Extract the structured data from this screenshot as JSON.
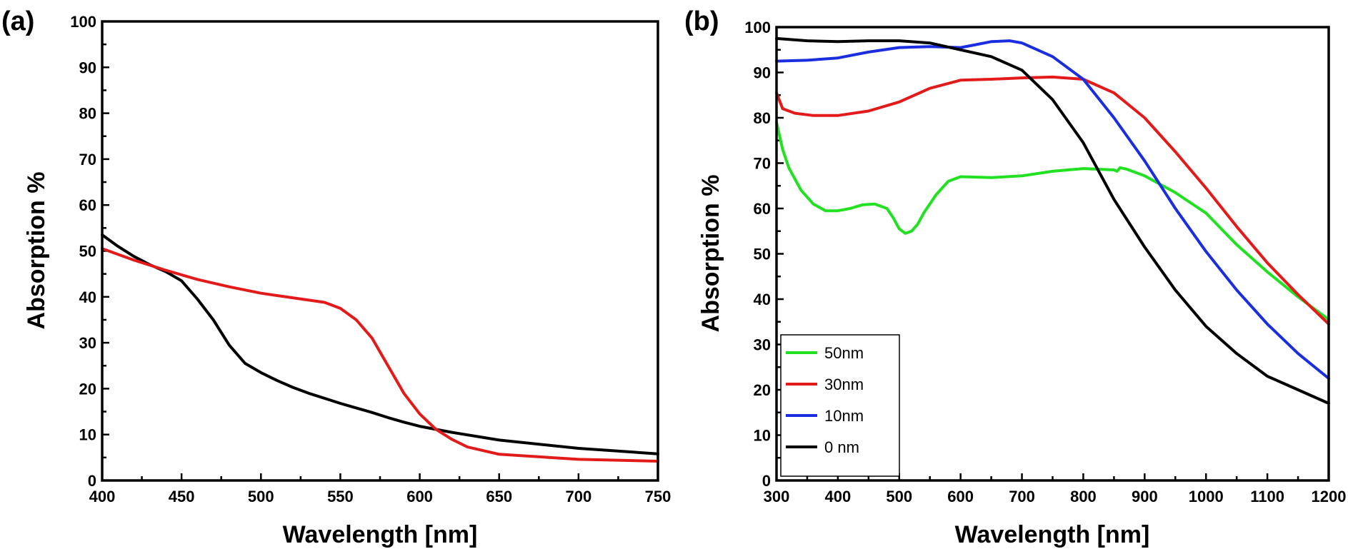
{
  "chart_data": [
    {
      "type": "line",
      "panel_label": "(a)",
      "title": "",
      "xlabel": "Wavelength [nm]",
      "ylabel": "Absorption %",
      "xlim": [
        400,
        750
      ],
      "ylim": [
        0,
        100
      ],
      "xticks": [
        400,
        450,
        500,
        550,
        600,
        650,
        700,
        750
      ],
      "yticks": [
        0,
        10,
        20,
        30,
        40,
        50,
        60,
        70,
        80,
        90,
        100
      ],
      "grid": false,
      "series": [
        {
          "name": "black",
          "color": "#000000",
          "x": [
            400,
            410,
            420,
            430,
            440,
            450,
            460,
            470,
            480,
            490,
            500,
            510,
            520,
            530,
            540,
            550,
            560,
            570,
            580,
            590,
            600,
            620,
            650,
            700,
            750
          ],
          "y": [
            53.5,
            51,
            48.8,
            47,
            45.5,
            43.5,
            39.5,
            35,
            29.5,
            25.5,
            23.5,
            21.8,
            20.3,
            19,
            17.9,
            16.8,
            15.8,
            14.8,
            13.7,
            12.7,
            11.8,
            10.5,
            8.8,
            7,
            5.8
          ]
        },
        {
          "name": "red",
          "color": "#e31a1a",
          "x": [
            400,
            420,
            440,
            460,
            480,
            500,
            520,
            540,
            550,
            560,
            570,
            580,
            590,
            600,
            610,
            620,
            630,
            650,
            700,
            750
          ],
          "y": [
            50.5,
            48,
            45.8,
            43.8,
            42.2,
            40.8,
            39.8,
            38.8,
            37.5,
            35,
            31,
            25,
            19,
            14.5,
            11.2,
            9,
            7.3,
            5.7,
            4.6,
            4.2
          ]
        }
      ]
    },
    {
      "type": "line",
      "panel_label": "(b)",
      "title": "",
      "xlabel": "Wavelength [nm]",
      "ylabel": "Absorption %",
      "xlim": [
        300,
        1200
      ],
      "ylim": [
        0,
        100
      ],
      "xticks": [
        300,
        400,
        500,
        600,
        700,
        800,
        900,
        1000,
        1100,
        1200
      ],
      "yticks": [
        0,
        10,
        20,
        30,
        40,
        50,
        60,
        70,
        80,
        90,
        100
      ],
      "grid": false,
      "legend_position": "bottom-left",
      "series": [
        {
          "name": "50nm",
          "color": "#22e022",
          "x": [
            300,
            310,
            320,
            340,
            360,
            380,
            400,
            420,
            440,
            460,
            480,
            490,
            500,
            510,
            520,
            530,
            540,
            560,
            580,
            600,
            650,
            700,
            750,
            800,
            850,
            855,
            860,
            870,
            900,
            950,
            1000,
            1050,
            1100,
            1150,
            1200
          ],
          "y": [
            79,
            73,
            69,
            64,
            61,
            59.5,
            59.5,
            60,
            60.8,
            61,
            60,
            58,
            55.5,
            54.5,
            55,
            56.5,
            59,
            63,
            66,
            67,
            66.8,
            67.2,
            68.2,
            68.8,
            68.5,
            68.2,
            69,
            68.7,
            67.2,
            63.5,
            59,
            52,
            46,
            40.5,
            35.5
          ]
        },
        {
          "name": "30nm",
          "color": "#e31a1a",
          "x": [
            300,
            310,
            330,
            360,
            400,
            450,
            500,
            550,
            600,
            650,
            700,
            750,
            800,
            850,
            900,
            950,
            1000,
            1050,
            1100,
            1150,
            1200
          ],
          "y": [
            85.5,
            82,
            81,
            80.5,
            80.5,
            81.5,
            83.5,
            86.5,
            88.3,
            88.5,
            88.8,
            89,
            88.5,
            85.5,
            80,
            72.5,
            64.5,
            56,
            48,
            41,
            34.5
          ]
        },
        {
          "name": "10nm",
          "color": "#1a2ee0",
          "x": [
            300,
            350,
            400,
            450,
            500,
            550,
            600,
            620,
            650,
            680,
            700,
            750,
            800,
            850,
            900,
            950,
            1000,
            1050,
            1100,
            1150,
            1200
          ],
          "y": [
            92.5,
            92.7,
            93.2,
            94.5,
            95.5,
            95.7,
            95.5,
            96,
            96.8,
            97,
            96.5,
            93.5,
            88.5,
            80,
            70.5,
            60,
            50.5,
            42,
            34.5,
            28,
            22.5
          ]
        },
        {
          "name": "0 nm",
          "color": "#000000",
          "x": [
            300,
            350,
            400,
            450,
            500,
            550,
            600,
            650,
            700,
            750,
            800,
            850,
            900,
            950,
            1000,
            1050,
            1100,
            1150,
            1200
          ],
          "y": [
            97.5,
            97,
            96.8,
            97,
            97,
            96.5,
            95,
            93.5,
            90.5,
            84,
            74.5,
            62,
            51.5,
            42,
            34,
            28,
            23,
            20,
            17
          ]
        }
      ]
    }
  ]
}
